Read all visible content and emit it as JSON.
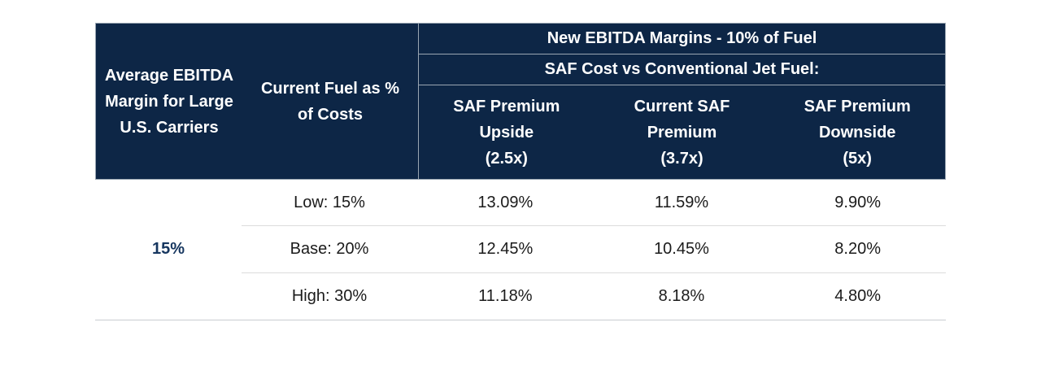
{
  "table": {
    "header": {
      "row_label_col": {
        "lines": [
          "Average EBITDA",
          "Margin for Large",
          "U.S. Carriers"
        ]
      },
      "fuel_col": {
        "lines": [
          "Current Fuel as %",
          "of Costs"
        ]
      },
      "group_title": "New EBITDA Margins - 10% of Fuel",
      "group_subtitle": "SAF Cost vs Conventional Jet Fuel:",
      "scenarios": [
        {
          "lines": [
            "SAF Premium",
            "Upside",
            "(2.5x)"
          ]
        },
        {
          "lines": [
            "Current SAF",
            "Premium",
            "(3.7x)"
          ]
        },
        {
          "lines": [
            "SAF Premium",
            "Downside",
            "(5x)"
          ]
        }
      ]
    },
    "body": {
      "avg_margin": "15%",
      "rows": [
        {
          "fuel_share": "Low: 15%",
          "values": [
            "13.09%",
            "11.59%",
            "9.90%"
          ]
        },
        {
          "fuel_share": "Base: 20%",
          "values": [
            "12.45%",
            "10.45%",
            "8.20%"
          ]
        },
        {
          "fuel_share": "High: 30%",
          "values": [
            "11.18%",
            "8.18%",
            "4.80%"
          ]
        }
      ]
    },
    "colors": {
      "header_bg": "#0d2646",
      "header_divider": "#9aa6b2",
      "accent_text": "#16365f",
      "row_divider": "#dcdcdc"
    }
  }
}
